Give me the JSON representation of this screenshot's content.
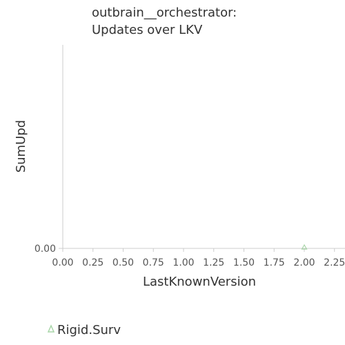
{
  "chart_data": {
    "type": "scatter",
    "title_lines": [
      "outbrain__orchestrator:",
      "Updates over LKV"
    ],
    "xlabel": "LastKnownVersion",
    "ylabel": "SumUpd",
    "xlim": [
      0,
      2.25
    ],
    "ylim": [
      0,
      1
    ],
    "x_ticks": [
      "0.00",
      "0.25",
      "0.50",
      "0.75",
      "1.00",
      "1.25",
      "1.50",
      "1.75",
      "2.00",
      "2.25"
    ],
    "y_ticks": [
      "0.00"
    ],
    "legend_position": "bottom-left",
    "series": [
      {
        "name": "Rigid.Surv",
        "marker": "triangle",
        "color": "#a8d5a8",
        "points": [
          {
            "x": 2.0,
            "y": 0.0
          }
        ]
      }
    ]
  }
}
